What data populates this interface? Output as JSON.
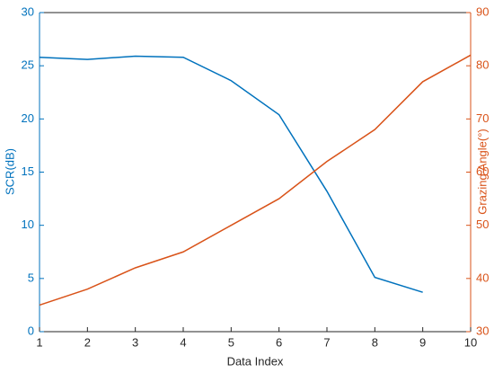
{
  "chart_data": {
    "type": "line",
    "x_label": "Data Index",
    "y_label": "SCR(dB)",
    "y2_label": "Grazing Angle(°)",
    "x": [
      1,
      2,
      3,
      4,
      5,
      6,
      7,
      8,
      9,
      10
    ],
    "series": [
      {
        "name": "SCR",
        "color": "#0072BD",
        "values": [
          25.8,
          25.6,
          25.9,
          25.8,
          23.6,
          20.4,
          13.2,
          5.1,
          3.7,
          null
        ]
      },
      {
        "name": "Grazing Angle",
        "color": "#D95319",
        "axis": "y2",
        "values": [
          35,
          38,
          42,
          45,
          50,
          55,
          62,
          68,
          77,
          82
        ]
      }
    ],
    "xlim": [
      1,
      10
    ],
    "xticks": [
      1,
      2,
      3,
      4,
      5,
      6,
      7,
      8,
      9,
      10
    ],
    "ylim": [
      0,
      30
    ],
    "yticks": [
      0,
      5,
      10,
      15,
      20,
      25,
      30
    ],
    "y2lim": [
      30,
      90
    ],
    "y2ticks": [
      30,
      40,
      50,
      60,
      70,
      80,
      90
    ]
  }
}
